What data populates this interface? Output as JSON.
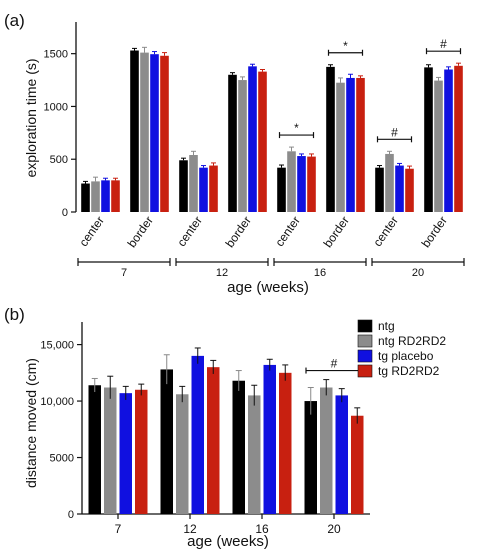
{
  "colors": {
    "ntg": "#000000",
    "ntg_rd2rd2": "#8c8c8c",
    "tg_placebo": "#1010e0",
    "tg_rd2rd2": "#c82010"
  },
  "chart_data": [
    {
      "panel_label": "(a)",
      "type": "bar",
      "ylabel": "exploration time (s)",
      "xlabel": "age (weeks)",
      "ylim": [
        0,
        1800
      ],
      "yticks": [
        0,
        500,
        1000,
        1500
      ],
      "categories": [
        "center",
        "border",
        "center",
        "border",
        "center",
        "border",
        "center",
        "border"
      ],
      "groups": [
        {
          "label": "7",
          "categories": [
            0,
            1
          ]
        },
        {
          "label": "12",
          "categories": [
            2,
            3
          ]
        },
        {
          "label": "16",
          "categories": [
            4,
            5
          ]
        },
        {
          "label": "20",
          "categories": [
            6,
            7
          ]
        }
      ],
      "series": [
        {
          "key": "ntg",
          "values": [
            270,
            1530,
            490,
            1300,
            420,
            1375,
            420,
            1370
          ],
          "errors": [
            20,
            20,
            20,
            20,
            25,
            20,
            20,
            25
          ]
        },
        {
          "key": "ntg_rd2rd2",
          "values": [
            290,
            1510,
            540,
            1250,
            575,
            1225,
            550,
            1245
          ],
          "errors": [
            40,
            50,
            35,
            30,
            40,
            45,
            25,
            30
          ]
        },
        {
          "key": "tg_placebo",
          "values": [
            300,
            1495,
            420,
            1380,
            530,
            1270,
            440,
            1350
          ],
          "errors": [
            20,
            25,
            20,
            20,
            20,
            35,
            20,
            25
          ]
        },
        {
          "key": "tg_rd2rd2",
          "values": [
            300,
            1480,
            440,
            1330,
            525,
            1270,
            410,
            1385
          ],
          "errors": [
            20,
            30,
            25,
            20,
            25,
            20,
            25,
            25
          ]
        }
      ],
      "significance": [
        {
          "category": 4,
          "mark": "*"
        },
        {
          "category": 5,
          "mark": "*"
        },
        {
          "category": 6,
          "mark": "#"
        },
        {
          "category": 7,
          "mark": "#"
        }
      ]
    },
    {
      "panel_label": "(b)",
      "type": "bar",
      "ylabel": "distance moved (cm)",
      "xlabel": "age (weeks)",
      "ylim": [
        0,
        17000
      ],
      "yticks": [
        0,
        5000,
        10000,
        15000
      ],
      "ytick_labels": [
        "0",
        "5000",
        "10,000",
        "15,000"
      ],
      "categories": [
        "7",
        "12",
        "16",
        "20"
      ],
      "series": [
        {
          "key": "ntg",
          "name": "ntg",
          "values": [
            11400,
            12800,
            11800,
            10000
          ],
          "errors": [
            600,
            1300,
            900,
            1200
          ]
        },
        {
          "key": "ntg_rd2rd2",
          "name": "ntg RD2RD2",
          "values": [
            11200,
            10600,
            10500,
            11200
          ],
          "errors": [
            1000,
            700,
            900,
            700
          ]
        },
        {
          "key": "tg_placebo",
          "name": "tg placebo",
          "values": [
            10700,
            14000,
            13200,
            10500
          ],
          "errors": [
            600,
            700,
            500,
            600
          ]
        },
        {
          "key": "tg_rd2rd2",
          "name": "tg RD2RD2",
          "values": [
            11000,
            13000,
            12500,
            8700
          ],
          "errors": [
            500,
            600,
            700,
            700
          ]
        }
      ],
      "significance": [
        {
          "category": 3,
          "mark": "#"
        }
      ],
      "legend_position": "right"
    }
  ]
}
